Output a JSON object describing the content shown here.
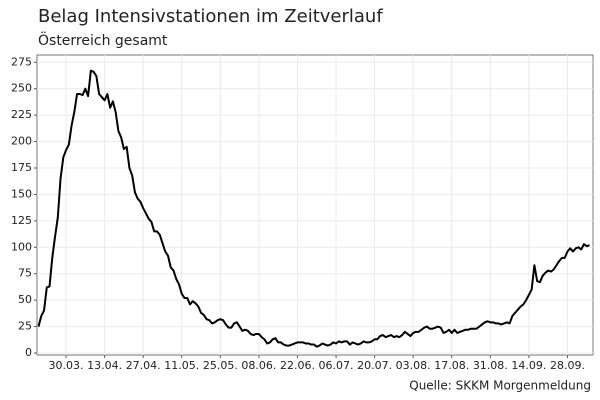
{
  "chart_data": {
    "type": "line",
    "title": "Belag Intensivstationen im Zeitverlauf",
    "subtitle": "Österreich gesamt",
    "caption": "Quelle: SKKM Morgenmeldung",
    "categories": [
      null,
      null,
      null,
      null,
      null,
      null,
      null,
      null,
      null,
      null,
      "30.03.",
      null,
      null,
      null,
      null,
      null,
      null,
      null,
      null,
      null,
      null,
      null,
      null,
      null,
      "13.04.",
      null,
      null,
      null,
      null,
      null,
      null,
      null,
      null,
      null,
      null,
      null,
      null,
      null,
      "27.04.",
      null,
      null,
      null,
      null,
      null,
      null,
      null,
      null,
      null,
      null,
      null,
      null,
      null,
      "11.05.",
      null,
      null,
      null,
      null,
      null,
      null,
      null,
      null,
      null,
      null,
      null,
      null,
      null,
      "25.05.",
      null,
      null,
      null,
      null,
      null,
      null,
      null,
      null,
      null,
      null,
      null,
      null,
      null,
      "08.06.",
      null,
      null,
      null,
      null,
      null,
      null,
      null,
      null,
      null,
      null,
      null,
      null,
      null,
      "22.06.",
      null,
      null,
      null,
      null,
      null,
      null,
      null,
      null,
      null,
      null,
      null,
      null,
      null,
      "06.07.",
      null,
      null,
      null,
      null,
      null,
      null,
      null,
      null,
      null,
      null,
      null,
      null,
      null,
      "20.07.",
      null,
      null,
      null,
      null,
      null,
      null,
      null,
      null,
      null,
      null,
      null,
      null,
      null,
      "03.08.",
      null,
      null,
      null,
      null,
      null,
      null,
      null,
      null,
      null,
      null,
      null,
      null,
      null,
      "17.08.",
      null,
      null,
      null,
      null,
      null,
      null,
      null,
      null,
      null,
      null,
      null,
      null,
      null,
      "31.08.",
      null,
      null,
      null,
      null,
      null,
      null,
      null,
      null,
      null,
      null,
      null,
      null,
      null,
      "14.09.",
      null,
      null,
      null,
      null,
      null,
      null,
      null,
      null,
      null,
      null,
      null,
      null,
      null,
      "28.09.",
      null,
      null,
      null,
      null,
      null,
      null,
      null,
      null
    ],
    "series": [
      {
        "color": "#000000",
        "values": [
          25,
          35,
          40,
          62,
          63,
          90,
          110,
          128,
          165,
          185,
          192,
          197,
          215,
          228,
          245,
          245,
          244,
          250,
          243,
          267,
          266,
          262,
          245,
          242,
          239,
          245,
          232,
          238,
          228,
          210,
          204,
          193,
          195,
          175,
          168,
          152,
          146,
          143,
          137,
          132,
          127,
          124,
          115,
          115,
          112,
          104,
          96,
          92,
          81,
          78,
          70,
          65,
          56,
          52,
          52,
          46,
          49,
          47,
          44,
          38,
          36,
          32,
          31,
          28,
          29,
          31,
          32,
          31,
          27,
          24,
          24,
          28,
          29,
          25,
          21,
          22,
          21,
          18,
          17,
          18,
          18,
          15,
          13,
          9,
          10,
          13,
          14,
          10,
          10,
          8,
          7,
          7,
          8,
          9,
          10,
          10,
          10,
          9,
          9,
          8,
          8,
          6,
          7,
          9,
          8,
          7,
          8,
          10,
          9,
          11,
          10,
          11,
          11,
          8,
          10,
          9,
          8,
          9,
          11,
          10,
          10,
          11,
          13,
          13,
          16,
          17,
          15,
          16,
          17,
          15,
          16,
          15,
          17,
          20,
          18,
          16,
          19,
          20,
          20,
          22,
          24,
          25,
          23,
          23,
          24,
          25,
          24,
          19,
          20,
          22,
          19,
          22,
          19,
          20,
          21,
          22,
          22,
          23,
          23,
          23,
          25,
          27,
          29,
          30,
          29,
          29,
          28,
          28,
          27,
          28,
          29,
          28,
          35,
          38,
          41,
          44,
          46,
          50,
          55,
          60,
          83,
          68,
          67,
          73,
          76,
          78,
          77,
          79,
          83,
          87,
          90,
          90,
          96,
          99,
          96,
          99,
          100,
          98,
          103,
          101,
          102
        ]
      }
    ],
    "ylim": [
      0,
      280
    ],
    "yticks": [
      0,
      25,
      50,
      75,
      100,
      125,
      150,
      175,
      200,
      225,
      250,
      275
    ],
    "grid": true
  }
}
